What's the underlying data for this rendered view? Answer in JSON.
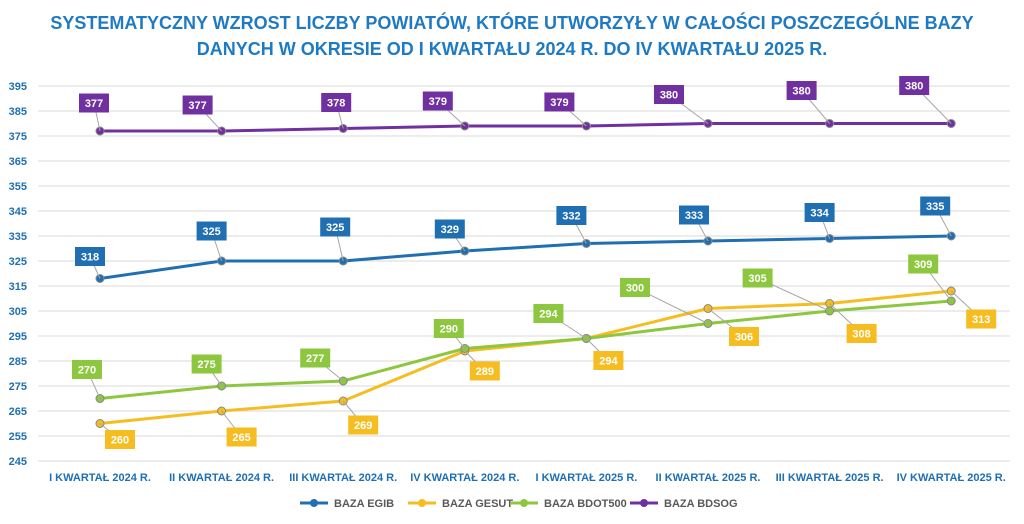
{
  "chart_data": {
    "type": "line",
    "title": "SYSTEMATYCZNY WZROST LICZBY POWIATÓW, KTÓRE UTWORZYŁY W CAŁOŚCI POSZCZEGÓLNE BAZY DANYCH W OKRESIE OD I KWARTAŁU 2024 R. DO IV KWARTAŁU 2025 R.",
    "title_lines": [
      "SYSTEMATYCZNY WZROST LICZBY POWIATÓW, KTÓRE UTWORZYŁY W CAŁOŚCI POSZCZEGÓLNE BAZY",
      "DANYCH W OKRESIE OD I KWARTAŁU 2024 R. DO IV KWARTAŁU 2025 R."
    ],
    "categories": [
      "I KWARTAŁ 2024 R.",
      "II KWARTAŁ 2024 R.",
      "III KWARTAŁ 2024 R.",
      "IV KWARTAŁ 2024 R.",
      "I KWARTAŁ 2025 R.",
      "II KWARTAŁ 2025 R.",
      "III KWARTAŁ 2025 R.",
      "IV KWARTAŁ 2025 R."
    ],
    "ylim": [
      245,
      395
    ],
    "yticks": [
      245,
      255,
      265,
      275,
      285,
      295,
      305,
      315,
      325,
      335,
      345,
      355,
      365,
      375,
      385,
      395
    ],
    "grid": true,
    "legend_position": "bottom",
    "series": [
      {
        "name": "BAZA EGIB",
        "color": "#1f6fb2",
        "values": [
          318,
          325,
          325,
          329,
          332,
          333,
          334,
          335
        ]
      },
      {
        "name": "BAZA GESUT",
        "color": "#f5bd1f",
        "values": [
          260,
          265,
          269,
          289,
          294,
          306,
          308,
          313
        ]
      },
      {
        "name": "BAZA BDOT500",
        "color": "#8dc63f",
        "values": [
          270,
          275,
          277,
          290,
          294,
          300,
          305,
          309
        ]
      },
      {
        "name": "BAZA BDSOG",
        "color": "#7030a0",
        "values": [
          377,
          377,
          378,
          379,
          379,
          380,
          380,
          380
        ]
      }
    ]
  }
}
